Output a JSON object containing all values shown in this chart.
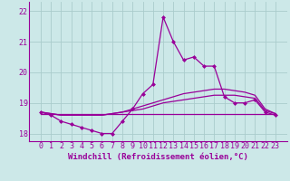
{
  "title": "",
  "xlabel": "Windchill (Refroidissement éolien,°C)",
  "background_color": "#cce8e8",
  "grid_color": "#aacccc",
  "line_color": "#990099",
  "hours": [
    0,
    1,
    2,
    3,
    4,
    5,
    6,
    7,
    8,
    9,
    10,
    11,
    12,
    13,
    14,
    15,
    16,
    17,
    18,
    19,
    20,
    21,
    22,
    23
  ],
  "line1": [
    18.7,
    18.6,
    18.4,
    18.3,
    18.2,
    18.1,
    18.0,
    18.0,
    18.4,
    18.8,
    19.3,
    19.6,
    21.8,
    21.0,
    20.4,
    20.5,
    20.2,
    20.2,
    19.2,
    19.0,
    19.0,
    19.1,
    18.7,
    18.6
  ],
  "line_flat": [
    18.65,
    18.65,
    18.65,
    18.65,
    18.65,
    18.65,
    18.65,
    18.65,
    18.65,
    18.65,
    18.65,
    18.65,
    18.65,
    18.65,
    18.65,
    18.65,
    18.65,
    18.65,
    18.65,
    18.65,
    18.65,
    18.65,
    18.65,
    18.65
  ],
  "line2": [
    18.7,
    18.65,
    18.6,
    18.6,
    18.6,
    18.6,
    18.6,
    18.65,
    18.7,
    18.75,
    18.8,
    18.9,
    19.0,
    19.05,
    19.1,
    19.15,
    19.2,
    19.25,
    19.25,
    19.25,
    19.2,
    19.15,
    18.75,
    18.65
  ],
  "line3": [
    18.7,
    18.65,
    18.6,
    18.6,
    18.6,
    18.6,
    18.6,
    18.65,
    18.7,
    18.8,
    18.9,
    19.0,
    19.1,
    19.2,
    19.3,
    19.35,
    19.4,
    19.45,
    19.45,
    19.4,
    19.35,
    19.25,
    18.8,
    18.65
  ],
  "ylim": [
    17.75,
    22.3
  ],
  "yticks": [
    18,
    19,
    20,
    21,
    22
  ],
  "xticks": [
    0,
    1,
    2,
    3,
    4,
    5,
    6,
    7,
    8,
    9,
    10,
    11,
    12,
    13,
    14,
    15,
    16,
    17,
    18,
    19,
    20,
    21,
    22,
    23
  ],
  "marker": "D",
  "markersize": 2.5,
  "linewidth": 0.9,
  "xlabel_fontsize": 6.5,
  "tick_fontsize": 6.0
}
